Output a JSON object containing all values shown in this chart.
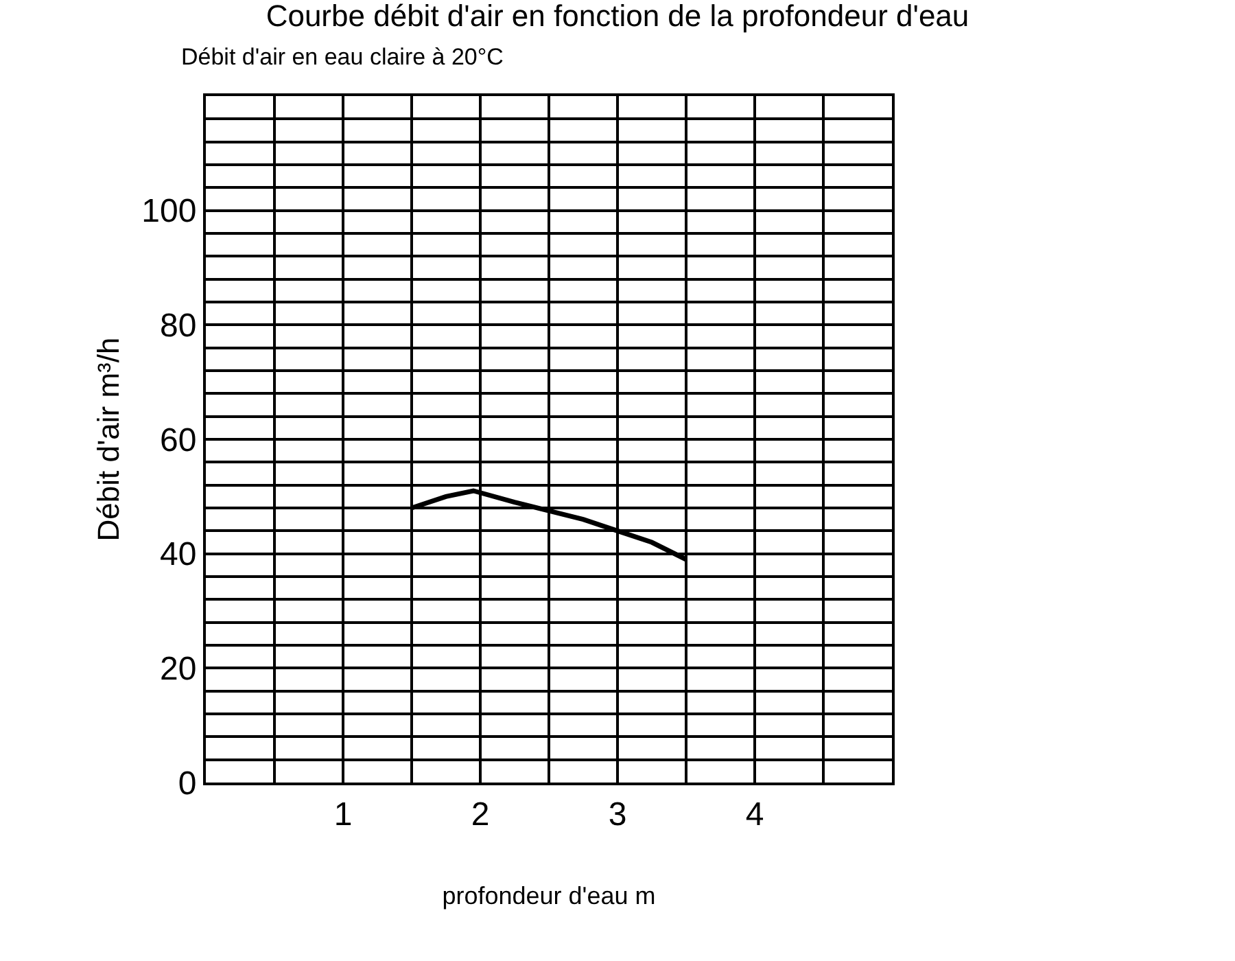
{
  "chart_data": {
    "type": "line",
    "title": "Courbe débit d'air en fonction de la profondeur d'eau",
    "subtitle": "Débit d'air en eau claire à 20°C",
    "xlabel": "profondeur d'eau m",
    "ylabel": "Débit d'air m³/h",
    "x": [
      1.5,
      1.75,
      1.95,
      2.25,
      2.5,
      2.75,
      3,
      3.25,
      3.5
    ],
    "series": [
      {
        "color": "#000000",
        "values": [
          48,
          50,
          51,
          49,
          47.5,
          46,
          44,
          42,
          39
        ]
      }
    ],
    "xlim": [
      0,
      5
    ],
    "xticks": [
      {
        "value": 0,
        "label": null
      },
      {
        "value": 0.5,
        "label": null
      },
      1,
      {
        "value": 1.5,
        "label": null
      },
      2,
      {
        "value": 2.5,
        "label": null
      },
      3,
      {
        "value": 3.5,
        "label": null
      },
      4,
      {
        "value": 4.5,
        "label": null
      },
      {
        "value": 5,
        "label": null
      }
    ],
    "ylim": [
      0,
      120
    ],
    "yticks": [
      0,
      {
        "value": 4,
        "label": null
      },
      {
        "value": 8,
        "label": null
      },
      {
        "value": 12,
        "label": null
      },
      {
        "value": 16,
        "label": null
      },
      20,
      {
        "value": 24,
        "label": null
      },
      {
        "value": 28,
        "label": null
      },
      {
        "value": 32,
        "label": null
      },
      {
        "value": 36,
        "label": null
      },
      40,
      {
        "value": 44,
        "label": null
      },
      {
        "value": 48,
        "label": null
      },
      {
        "value": 52,
        "label": null
      },
      {
        "value": 56,
        "label": null
      },
      60,
      {
        "value": 64,
        "label": null
      },
      {
        "value": 68,
        "label": null
      },
      {
        "value": 72,
        "label": null
      },
      {
        "value": 76,
        "label": null
      },
      80,
      {
        "value": 84,
        "label": null
      },
      {
        "value": 88,
        "label": null
      },
      {
        "value": 92,
        "label": null
      },
      {
        "value": 96,
        "label": null
      },
      100,
      {
        "value": 104,
        "label": null
      },
      {
        "value": 108,
        "label": null
      },
      {
        "value": 112,
        "label": null
      },
      {
        "value": 116,
        "label": null
      },
      {
        "value": 120,
        "label": null
      }
    ],
    "grid": true,
    "marker": "none",
    "line_style": "solid"
  }
}
